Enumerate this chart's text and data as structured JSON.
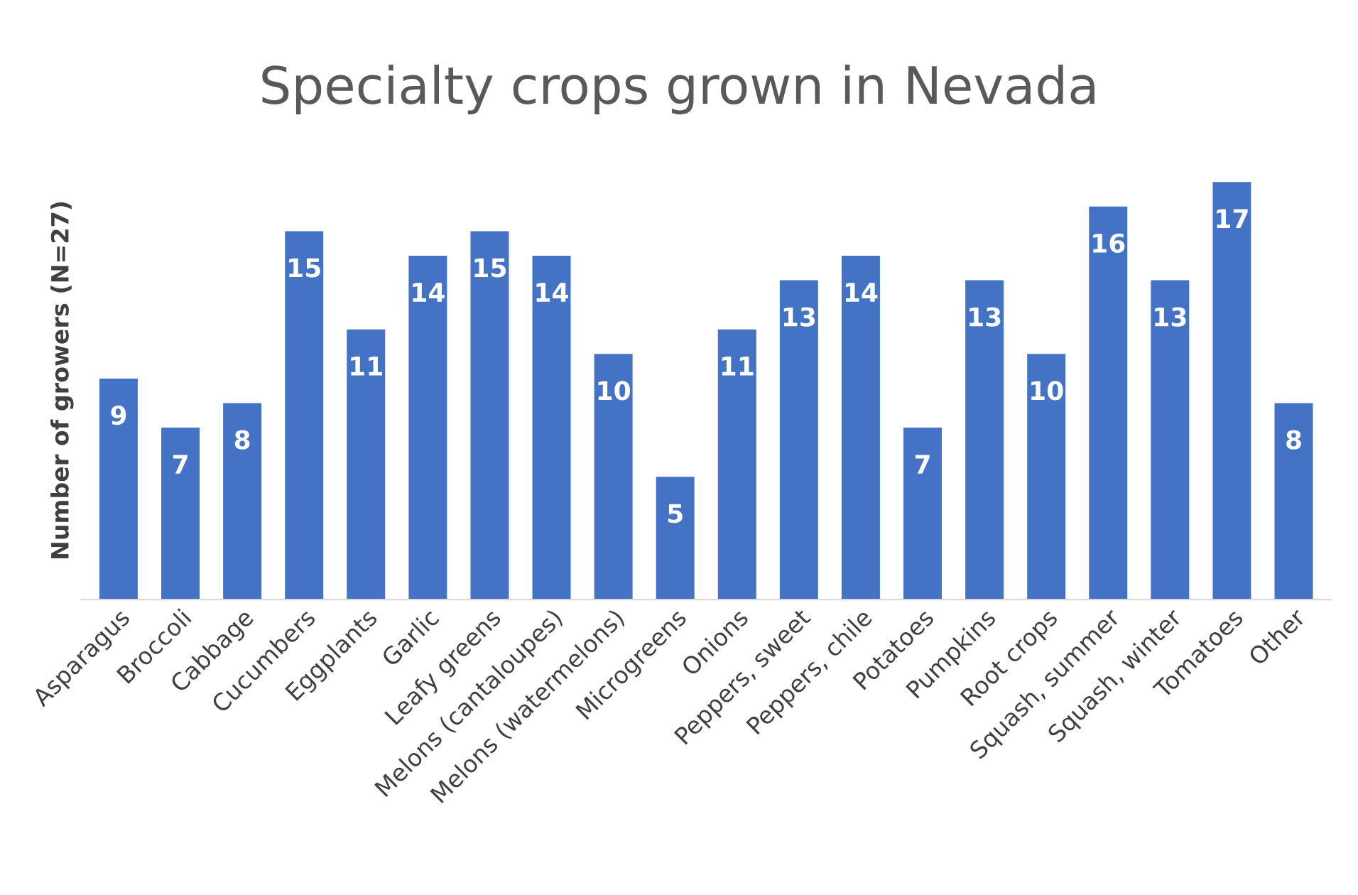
{
  "chart_data": {
    "type": "bar",
    "title": "Specialty crops grown in Nevada",
    "ylabel": "Number of growers (N=27)",
    "categories": [
      "Asparagus",
      "Broccoli",
      "Cabbage",
      "Cucumbers",
      "Eggplants",
      "Garlic",
      "Leafy greens",
      "Melons (cantaloupes)",
      "Melons (watermelons)",
      "Microgreens",
      "Onions",
      "Peppers, sweet",
      "Peppers, chile",
      "Potatoes",
      "Pumpkins",
      "Root crops",
      "Squash, summer",
      "Squash, winter",
      "Tomatoes",
      "Other"
    ],
    "values": [
      9,
      7,
      8,
      15,
      11,
      14,
      15,
      14,
      10,
      5,
      11,
      13,
      14,
      7,
      13,
      10,
      16,
      13,
      17,
      8
    ],
    "color": "#4472c4",
    "data_labels": true,
    "grid": false,
    "legend": false
  }
}
